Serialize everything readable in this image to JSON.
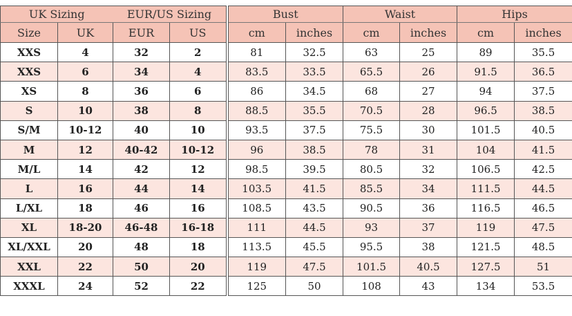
{
  "colors": {
    "header_bg": "#f5c3b6",
    "alt_row_bg": "#fce5df",
    "border": "#555555"
  },
  "group_headers": [
    "UK Sizing",
    "EUR/US Sizing",
    "Bust",
    "Waist",
    "Hips"
  ],
  "column_headers": [
    "Size",
    "UK",
    "EUR",
    "US",
    "cm",
    "inches",
    "cm",
    "inches",
    "cm",
    "inches"
  ],
  "rows": [
    [
      "XXS",
      "4",
      "32",
      "2",
      "81",
      "32.5",
      "63",
      "25",
      "89",
      "35.5"
    ],
    [
      "XXS",
      "6",
      "34",
      "4",
      "83.5",
      "33.5",
      "65.5",
      "26",
      "91.5",
      "36.5"
    ],
    [
      "XS",
      "8",
      "36",
      "6",
      "86",
      "34.5",
      "68",
      "27",
      "94",
      "37.5"
    ],
    [
      "S",
      "10",
      "38",
      "8",
      "88.5",
      "35.5",
      "70.5",
      "28",
      "96.5",
      "38.5"
    ],
    [
      "S/M",
      "10-12",
      "40",
      "10",
      "93.5",
      "37.5",
      "75.5",
      "30",
      "101.5",
      "40.5"
    ],
    [
      "M",
      "12",
      "40-42",
      "10-12",
      "96",
      "38.5",
      "78",
      "31",
      "104",
      "41.5"
    ],
    [
      "M/L",
      "14",
      "42",
      "12",
      "98.5",
      "39.5",
      "80.5",
      "32",
      "106.5",
      "42.5"
    ],
    [
      "L",
      "16",
      "44",
      "14",
      "103.5",
      "41.5",
      "85.5",
      "34",
      "111.5",
      "44.5"
    ],
    [
      "L/XL",
      "18",
      "46",
      "16",
      "108.5",
      "43.5",
      "90.5",
      "36",
      "116.5",
      "46.5"
    ],
    [
      "XL",
      "18-20",
      "46-48",
      "16-18",
      "111",
      "44.5",
      "93",
      "37",
      "119",
      "47.5"
    ],
    [
      "XL/XXL",
      "20",
      "48",
      "18",
      "113.5",
      "45.5",
      "95.5",
      "38",
      "121.5",
      "48.5"
    ],
    [
      "XXL",
      "22",
      "50",
      "20",
      "119",
      "47.5",
      "101.5",
      "40.5",
      "127.5",
      "51"
    ],
    [
      "XXXL",
      "24",
      "52",
      "22",
      "125",
      "50",
      "108",
      "43",
      "134",
      "53.5"
    ]
  ]
}
